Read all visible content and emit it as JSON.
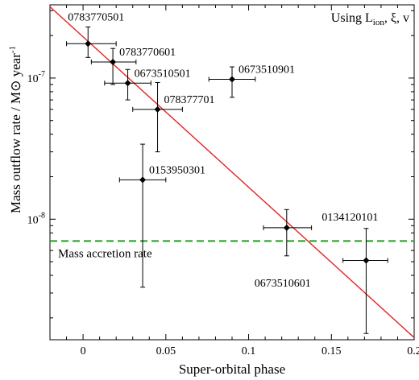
{
  "chart_data": {
    "type": "scatter",
    "xlabel": "Super-orbital phase",
    "ylabel": {
      "main": "Mass outflow rate / M",
      "symbol": "⊙",
      "unit": " year",
      "exp": "-1"
    },
    "annotation": {
      "prefix": "Using L",
      "sub": "ion",
      "suffix": ", ξ, v"
    },
    "x_range": [
      -0.02,
      0.2
    ],
    "y_range": [
      1.4e-09,
      3.3e-07
    ],
    "y_scale": "log",
    "x_ticks": [
      {
        "value": 0,
        "label": "0"
      },
      {
        "value": 0.05,
        "label": "0.05"
      },
      {
        "value": 0.1,
        "label": "0.1"
      },
      {
        "value": 0.15,
        "label": "0.15"
      },
      {
        "value": 0.2,
        "label": "0.2"
      }
    ],
    "y_ticks": [
      {
        "value": 1e-08,
        "base": "10",
        "exp": "-8"
      },
      {
        "value": 1e-07,
        "base": "10",
        "exp": "-7"
      }
    ],
    "points": [
      {
        "label": "0783770501",
        "x": 0.003,
        "y": 1.75e-07,
        "x_err": [
          0.013,
          0.017
        ],
        "y_err": [
          3.5e-08,
          5.5e-08
        ],
        "label_pos": "above-left"
      },
      {
        "label": "0783770601",
        "x": 0.018,
        "y": 1.3e-07,
        "x_err": [
          0.013,
          0.014
        ],
        "y_err": [
          4e-08,
          3.2e-08
        ],
        "label_pos": "right"
      },
      {
        "label": "0673510501",
        "x": 0.027,
        "y": 9.2e-08,
        "x_err": [
          0.014,
          0.014
        ],
        "y_err": [
          2.2e-08,
          2.3e-08
        ],
        "label_pos": "right"
      },
      {
        "label": "078377701",
        "x": 0.045,
        "y": 6e-08,
        "x_err": [
          0.015,
          0.015
        ],
        "y_err": [
          3e-08,
          3.3e-08
        ],
        "label_pos": "right"
      },
      {
        "label": "0673510901",
        "x": 0.09,
        "y": 9.8e-08,
        "x_err": [
          0.014,
          0.014
        ],
        "y_err": [
          2.5e-08,
          2.2e-08
        ],
        "label_pos": "right"
      },
      {
        "label": "0153950301",
        "x": 0.036,
        "y": 1.9e-08,
        "x_err": [
          0.014,
          0.014
        ],
        "y_err": [
          1.57e-08,
          1.5e-08
        ],
        "label_pos": "right"
      },
      {
        "label": "0673510601",
        "x": 0.123,
        "y": 8.7e-09,
        "x_err": [
          0.014,
          0.015
        ],
        "y_err": [
          3.2e-09,
          3e-09
        ],
        "label_pos": "below-left"
      },
      {
        "label": "0134120101",
        "x": 0.171,
        "y": 5.1e-09,
        "x_err": [
          0.014,
          0.013
        ],
        "y_err": [
          3.55e-09,
          3.5e-09
        ],
        "label_pos": "above"
      }
    ],
    "fit_line": {
      "color": "#e8201f",
      "points": [
        [
          -0.02,
          3.2e-07
        ],
        [
          0.2,
          1.45e-09
        ]
      ]
    },
    "reference_line": {
      "label": "Mass accretion rate",
      "y": 7e-09,
      "color": "#20a020",
      "style": "dashed"
    }
  }
}
